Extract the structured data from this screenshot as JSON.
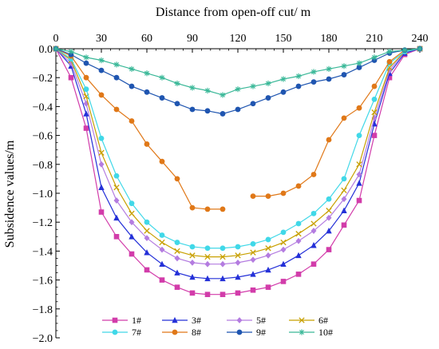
{
  "chart_data": {
    "type": "line",
    "title": "",
    "xlabel": "Distance from open-off cut/ m",
    "ylabel": "Subsidence values/m",
    "xlim": [
      0,
      240
    ],
    "ylim": [
      -2.0,
      0.0
    ],
    "x_axis_position": "top",
    "x_ticks": [
      0,
      30,
      60,
      90,
      120,
      150,
      180,
      210,
      240
    ],
    "x_tick_labels": [
      "0",
      "30",
      "60",
      "90",
      "120",
      "150",
      "180",
      "210",
      "240"
    ],
    "y_ticks": [
      0.0,
      -0.2,
      -0.4,
      -0.6,
      -0.8,
      -1.0,
      -1.2,
      -1.4,
      -1.6,
      -1.8,
      -2.0
    ],
    "y_tick_labels": [
      "0.0",
      "−0.2",
      "−0.4",
      "−0.6",
      "−0.8",
      "−1.0",
      "−1.2",
      "−1.4",
      "−1.6",
      "−1.8",
      "−2.0"
    ],
    "grid": false,
    "legend_position": "bottom",
    "series": [
      {
        "name": "1#",
        "color": "#d23caa",
        "marker": "square",
        "x": [
          0,
          10,
          20,
          30,
          40,
          50,
          60,
          70,
          80,
          90,
          100,
          110,
          120,
          130,
          140,
          150,
          160,
          170,
          180,
          190,
          200,
          210,
          220,
          230,
          240
        ],
        "y": [
          0.0,
          -0.2,
          -0.55,
          -1.13,
          -1.3,
          -1.42,
          -1.53,
          -1.6,
          -1.65,
          -1.69,
          -1.7,
          -1.7,
          -1.69,
          -1.67,
          -1.65,
          -1.61,
          -1.56,
          -1.49,
          -1.39,
          -1.22,
          -1.05,
          -0.6,
          -0.2,
          -0.04,
          0.0
        ]
      },
      {
        "name": "3#",
        "color": "#2430d8",
        "marker": "triangle",
        "x": [
          0,
          10,
          20,
          30,
          40,
          50,
          60,
          70,
          80,
          90,
          100,
          110,
          120,
          130,
          140,
          150,
          160,
          170,
          180,
          190,
          200,
          210,
          220,
          230,
          240
        ],
        "y": [
          0.0,
          -0.12,
          -0.45,
          -0.96,
          -1.17,
          -1.3,
          -1.41,
          -1.49,
          -1.55,
          -1.58,
          -1.59,
          -1.59,
          -1.58,
          -1.56,
          -1.53,
          -1.49,
          -1.43,
          -1.36,
          -1.26,
          -1.12,
          -0.93,
          -0.52,
          -0.17,
          -0.03,
          0.0
        ]
      },
      {
        "name": "5#",
        "color": "#b47ce0",
        "marker": "diamond",
        "x": [
          0,
          10,
          20,
          30,
          40,
          50,
          60,
          70,
          80,
          90,
          100,
          110,
          120,
          130,
          140,
          150,
          160,
          170,
          180,
          190,
          200,
          210,
          220,
          230,
          240
        ],
        "y": [
          0.0,
          -0.1,
          -0.38,
          -0.8,
          -1.05,
          -1.2,
          -1.31,
          -1.39,
          -1.45,
          -1.48,
          -1.49,
          -1.49,
          -1.48,
          -1.46,
          -1.43,
          -1.39,
          -1.33,
          -1.26,
          -1.17,
          -1.04,
          -0.87,
          -0.48,
          -0.15,
          -0.02,
          0.0
        ]
      },
      {
        "name": "6#",
        "color": "#c8a000",
        "marker": "cross",
        "x": [
          0,
          10,
          20,
          30,
          40,
          50,
          60,
          70,
          80,
          90,
          100,
          110,
          120,
          130,
          140,
          150,
          160,
          170,
          180,
          190,
          200,
          210,
          220,
          230,
          240
        ],
        "y": [
          0.0,
          -0.08,
          -0.33,
          -0.72,
          -0.96,
          -1.14,
          -1.26,
          -1.34,
          -1.4,
          -1.43,
          -1.44,
          -1.44,
          -1.43,
          -1.41,
          -1.38,
          -1.34,
          -1.28,
          -1.21,
          -1.12,
          -0.98,
          -0.8,
          -0.44,
          -0.13,
          -0.02,
          0.0
        ]
      },
      {
        "name": "7#",
        "color": "#40d8e8",
        "marker": "circle",
        "x": [
          0,
          10,
          20,
          30,
          40,
          50,
          60,
          70,
          80,
          90,
          100,
          110,
          120,
          130,
          140,
          150,
          160,
          170,
          180,
          190,
          200,
          210,
          220,
          230,
          240
        ],
        "y": [
          0.0,
          -0.07,
          -0.28,
          -0.62,
          -0.88,
          -1.07,
          -1.2,
          -1.29,
          -1.34,
          -1.37,
          -1.38,
          -1.38,
          -1.37,
          -1.35,
          -1.32,
          -1.27,
          -1.21,
          -1.14,
          -1.04,
          -0.9,
          -0.6,
          -0.35,
          -0.1,
          -0.02,
          0.0
        ]
      },
      {
        "name": "8#",
        "color": "#e07818",
        "marker": "circle",
        "x": [
          0,
          10,
          20,
          30,
          40,
          50,
          60,
          70,
          80,
          90,
          100,
          110,
          null,
          130,
          140,
          150,
          160,
          170,
          180,
          190,
          200,
          210,
          220,
          230,
          240
        ],
        "y": [
          0.0,
          -0.05,
          -0.2,
          -0.32,
          -0.42,
          -0.5,
          -0.66,
          -0.78,
          -0.9,
          -1.1,
          -1.11,
          -1.11,
          null,
          -1.02,
          -1.02,
          -1.0,
          -0.95,
          -0.87,
          -0.63,
          -0.48,
          -0.41,
          -0.26,
          -0.09,
          -0.01,
          0.0
        ]
      },
      {
        "name": "9#",
        "color": "#1f55b0",
        "marker": "circle",
        "x": [
          0,
          10,
          20,
          30,
          40,
          50,
          60,
          70,
          80,
          90,
          100,
          110,
          120,
          130,
          140,
          150,
          160,
          170,
          180,
          190,
          200,
          210,
          220,
          230,
          240
        ],
        "y": [
          0.0,
          -0.04,
          -0.1,
          -0.15,
          -0.2,
          -0.26,
          -0.3,
          -0.34,
          -0.38,
          -0.42,
          -0.43,
          -0.45,
          -0.42,
          -0.38,
          -0.34,
          -0.3,
          -0.26,
          -0.23,
          -0.21,
          -0.18,
          -0.13,
          -0.08,
          -0.03,
          -0.01,
          0.0
        ]
      },
      {
        "name": "10#",
        "color": "#3ab898",
        "marker": "star",
        "x": [
          0,
          10,
          20,
          30,
          40,
          50,
          60,
          70,
          80,
          90,
          100,
          110,
          120,
          130,
          140,
          150,
          160,
          170,
          180,
          190,
          200,
          210,
          220,
          230,
          240
        ],
        "y": [
          0.0,
          -0.02,
          -0.06,
          -0.08,
          -0.11,
          -0.14,
          -0.17,
          -0.2,
          -0.24,
          -0.27,
          -0.29,
          -0.32,
          -0.28,
          -0.26,
          -0.24,
          -0.21,
          -0.19,
          -0.16,
          -0.14,
          -0.12,
          -0.1,
          -0.06,
          -0.02,
          -0.01,
          0.0
        ]
      }
    ]
  }
}
